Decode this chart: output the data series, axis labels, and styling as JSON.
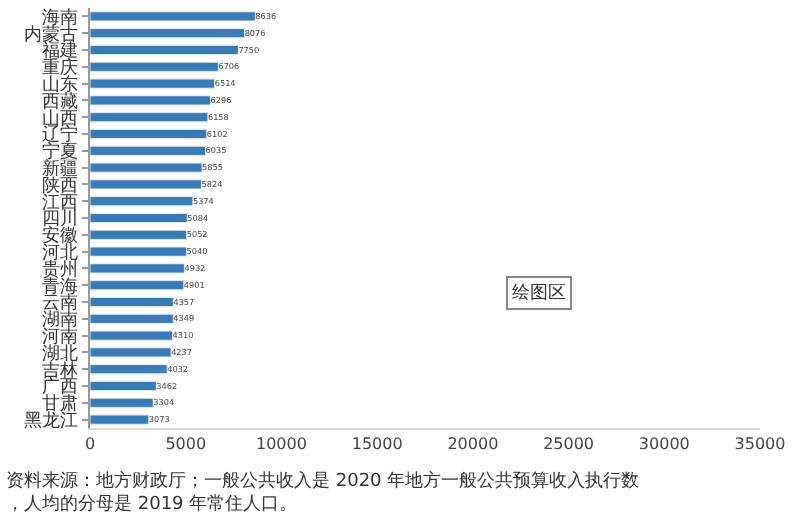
{
  "chart_data": {
    "type": "bar",
    "orientation": "horizontal",
    "categories": [
      "海南",
      "内蒙古",
      "福建",
      "重庆",
      "山东",
      "西藏",
      "山西",
      "辽宁",
      "宁夏",
      "新疆",
      "陕西",
      "江西",
      "四川",
      "安徽",
      "河北",
      "贵州",
      "青海",
      "云南",
      "湖南",
      "河南",
      "湖北",
      "吉林",
      "广西",
      "甘肃",
      "黑龙江"
    ],
    "values": [
      8636,
      8076,
      7750,
      6706,
      6514,
      6296,
      6158,
      6102,
      6035,
      5855,
      5824,
      5374,
      5084,
      5052,
      5040,
      4932,
      4901,
      4357,
      4349,
      4310,
      4237,
      4032,
      3462,
      3304,
      3073
    ],
    "color": "#3b7bb5",
    "data_labels": true,
    "xlim": [
      0,
      35000
    ],
    "xticks": [
      0,
      5000,
      10000,
      15000,
      20000,
      25000,
      30000,
      35000
    ],
    "legend": false,
    "annotations": [
      "绘图区",
      "资料来源：地方财政厅；一般公共收入是 2020 年地方一般公共预算收入执行数，人均的分母是 2019 年常住人口。"
    ]
  }
}
